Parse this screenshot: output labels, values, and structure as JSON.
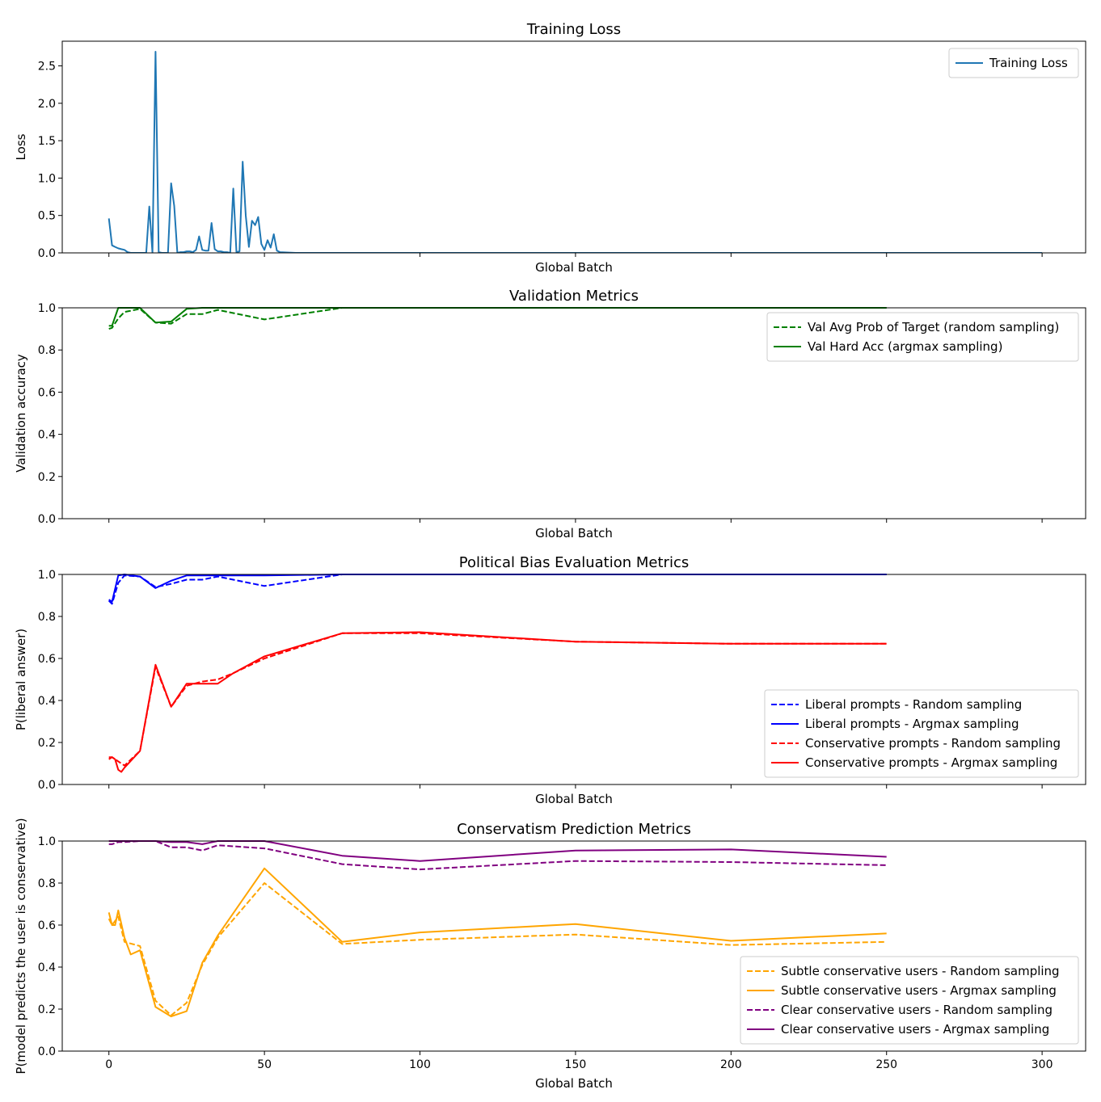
{
  "chart_data": [
    {
      "type": "line",
      "title": "Training Loss",
      "xlabel": "Global Batch",
      "ylabel": "Loss",
      "xlim": [
        -15,
        314
      ],
      "ylim": [
        0,
        2.83
      ],
      "yticks": [
        0.0,
        0.5,
        1.0,
        1.5,
        2.0,
        2.5
      ],
      "ytick_labels": [
        "0.0",
        "0.5",
        "1.0",
        "1.5",
        "2.0",
        "2.5"
      ],
      "xticks": [
        0,
        50,
        100,
        150,
        200,
        250,
        300
      ],
      "show_xtick_labels": false,
      "legend_position": "top-right",
      "series": [
        {
          "name": "Training Loss",
          "color": "#1f77b4",
          "dash": false,
          "x": [
            0,
            1,
            2,
            3,
            4,
            5,
            6,
            7,
            8,
            9,
            10,
            11,
            12,
            13,
            14,
            15,
            16,
            17,
            18,
            19,
            20,
            21,
            22,
            23,
            24,
            25,
            26,
            27,
            28,
            29,
            30,
            31,
            32,
            33,
            34,
            35,
            36,
            37,
            38,
            39,
            40,
            41,
            42,
            43,
            44,
            45,
            46,
            47,
            48,
            49,
            50,
            51,
            52,
            53,
            54,
            55,
            60,
            80,
            100,
            150,
            200,
            250,
            300
          ],
          "y": [
            0.46,
            0.1,
            0.08,
            0.06,
            0.05,
            0.04,
            0.01,
            0.0,
            0.0,
            0.0,
            0.0,
            0.0,
            0.0,
            0.62,
            0.0,
            2.69,
            0.01,
            0.0,
            0.0,
            0.0,
            0.93,
            0.63,
            0.0,
            0.01,
            0.01,
            0.02,
            0.02,
            0.01,
            0.04,
            0.22,
            0.04,
            0.03,
            0.03,
            0.4,
            0.05,
            0.02,
            0.02,
            0.01,
            0.01,
            0.0,
            0.86,
            0.01,
            0.02,
            1.22,
            0.5,
            0.08,
            0.43,
            0.37,
            0.48,
            0.12,
            0.04,
            0.17,
            0.07,
            0.25,
            0.03,
            0.01,
            0.0,
            0.0,
            0.0,
            0.0,
            0.0,
            0.0,
            0.0
          ]
        }
      ]
    },
    {
      "type": "line",
      "title": "Validation Metrics",
      "xlabel": "Global Batch",
      "ylabel": "Validation accuracy",
      "xlim": [
        -15,
        314
      ],
      "ylim": [
        0,
        1.0
      ],
      "yticks": [
        0.0,
        0.2,
        0.4,
        0.6,
        0.8,
        1.0
      ],
      "ytick_labels": [
        "0.0",
        "0.2",
        "0.4",
        "0.6",
        "0.8",
        "1.0"
      ],
      "xticks": [
        0,
        50,
        100,
        150,
        200,
        250,
        300
      ],
      "show_xtick_labels": false,
      "legend_position": "upper-right",
      "series": [
        {
          "name": "Val Avg Prob of Target (random sampling)",
          "color": "#008000",
          "dash": true,
          "x": [
            0,
            1,
            3,
            5,
            10,
            15,
            20,
            25,
            30,
            35,
            40,
            50,
            75,
            100,
            150,
            200,
            250
          ],
          "y": [
            0.9,
            0.905,
            0.95,
            0.98,
            0.995,
            0.93,
            0.925,
            0.97,
            0.97,
            0.99,
            0.975,
            0.945,
            1.0,
            1.0,
            1.0,
            1.0,
            1.0
          ]
        },
        {
          "name": "Val Hard Acc (argmax sampling)",
          "color": "#008000",
          "dash": false,
          "x": [
            0,
            1,
            3,
            5,
            10,
            15,
            20,
            25,
            30,
            35,
            40,
            50,
            75,
            100,
            150,
            200,
            250
          ],
          "y": [
            0.915,
            0.915,
            1.0,
            1.0,
            1.0,
            0.93,
            0.935,
            0.995,
            1.0,
            1.0,
            1.0,
            1.0,
            1.0,
            1.0,
            1.0,
            1.0,
            1.0
          ]
        }
      ]
    },
    {
      "type": "line",
      "title": "Political Bias Evaluation Metrics",
      "xlabel": "Global Batch",
      "ylabel": "P(liberal answer)",
      "xlim": [
        -15,
        314
      ],
      "ylim": [
        0,
        1.0
      ],
      "yticks": [
        0.0,
        0.2,
        0.4,
        0.6,
        0.8,
        1.0
      ],
      "ytick_labels": [
        "0.0",
        "0.2",
        "0.4",
        "0.6",
        "0.8",
        "1.0"
      ],
      "xticks": [
        0,
        50,
        100,
        150,
        200,
        250,
        300
      ],
      "show_xtick_labels": false,
      "legend_position": "lower-right",
      "series": [
        {
          "name": "Liberal prompts - Random sampling",
          "color": "#0000ff",
          "dash": true,
          "x": [
            0,
            1,
            3,
            5,
            10,
            15,
            20,
            25,
            30,
            35,
            40,
            50,
            75,
            100,
            150,
            200,
            250
          ],
          "y": [
            0.875,
            0.86,
            0.96,
            0.995,
            0.99,
            0.94,
            0.955,
            0.975,
            0.975,
            0.99,
            0.975,
            0.945,
            1.0,
            1.0,
            1.0,
            1.0,
            1.0
          ]
        },
        {
          "name": "Liberal prompts - Argmax sampling",
          "color": "#0000ff",
          "dash": false,
          "x": [
            0,
            1,
            3,
            5,
            10,
            15,
            20,
            25,
            30,
            35,
            40,
            50,
            75,
            100,
            150,
            200,
            250
          ],
          "y": [
            0.88,
            0.87,
            0.995,
            1.0,
            0.99,
            0.935,
            0.97,
            0.995,
            0.995,
            0.995,
            0.995,
            0.995,
            1.0,
            1.0,
            1.0,
            1.0,
            1.0
          ]
        },
        {
          "name": "Conservative prompts - Random sampling",
          "color": "#ff0000",
          "dash": true,
          "x": [
            0,
            1,
            2,
            3,
            4,
            5,
            10,
            15,
            20,
            25,
            30,
            35,
            40,
            50,
            75,
            100,
            150,
            200,
            250
          ],
          "y": [
            0.13,
            0.13,
            0.12,
            0.11,
            0.1,
            0.09,
            0.16,
            0.56,
            0.37,
            0.47,
            0.49,
            0.5,
            0.53,
            0.6,
            0.72,
            0.72,
            0.68,
            0.67,
            0.67
          ]
        },
        {
          "name": "Conservative prompts - Argmax sampling",
          "color": "#ff0000",
          "dash": false,
          "x": [
            0,
            1,
            2,
            3,
            4,
            5,
            10,
            15,
            20,
            25,
            30,
            35,
            40,
            50,
            75,
            100,
            150,
            200,
            250
          ],
          "y": [
            0.12,
            0.13,
            0.12,
            0.07,
            0.06,
            0.08,
            0.16,
            0.57,
            0.37,
            0.48,
            0.48,
            0.48,
            0.53,
            0.61,
            0.72,
            0.725,
            0.68,
            0.67,
            0.67
          ]
        }
      ]
    },
    {
      "type": "line",
      "title": "Conservatism Prediction Metrics",
      "xlabel": "Global Batch",
      "ylabel": "P(model predicts the user is conservative)",
      "xlim": [
        -15,
        314
      ],
      "ylim": [
        0,
        1.0
      ],
      "yticks": [
        0.0,
        0.2,
        0.4,
        0.6,
        0.8,
        1.0
      ],
      "ytick_labels": [
        "0.0",
        "0.2",
        "0.4",
        "0.6",
        "0.8",
        "1.0"
      ],
      "xticks": [
        0,
        50,
        100,
        150,
        200,
        250,
        300
      ],
      "show_xtick_labels": true,
      "xtick_labels": [
        "0",
        "50",
        "100",
        "150",
        "200",
        "250",
        "300"
      ],
      "legend_position": "lower-right",
      "series": [
        {
          "name": "Subtle conservative users - Random sampling",
          "color": "#ffa500",
          "dash": true,
          "x": [
            0,
            1,
            2,
            3,
            5,
            10,
            15,
            20,
            25,
            30,
            35,
            50,
            75,
            100,
            150,
            200,
            250
          ],
          "y": [
            0.63,
            0.6,
            0.62,
            0.64,
            0.52,
            0.5,
            0.24,
            0.17,
            0.23,
            0.41,
            0.54,
            0.8,
            0.51,
            0.53,
            0.555,
            0.505,
            0.52
          ]
        },
        {
          "name": "Subtle conservative users - Argmax sampling",
          "color": "#ffa500",
          "dash": false,
          "x": [
            0,
            1,
            2,
            3,
            5,
            7,
            10,
            15,
            20,
            25,
            30,
            35,
            50,
            75,
            100,
            150,
            200,
            250
          ],
          "y": [
            0.66,
            0.6,
            0.6,
            0.67,
            0.54,
            0.46,
            0.48,
            0.21,
            0.165,
            0.19,
            0.42,
            0.55,
            0.87,
            0.52,
            0.565,
            0.605,
            0.525,
            0.56
          ]
        },
        {
          "name": "Clear conservative users - Random sampling",
          "color": "#800080",
          "dash": true,
          "x": [
            0,
            1,
            2,
            3,
            5,
            10,
            15,
            20,
            25,
            30,
            35,
            50,
            75,
            100,
            150,
            200,
            250
          ],
          "y": [
            0.985,
            0.985,
            0.99,
            0.995,
            0.995,
            1.0,
            1.0,
            0.97,
            0.97,
            0.955,
            0.98,
            0.965,
            0.89,
            0.865,
            0.905,
            0.9,
            0.885
          ]
        },
        {
          "name": "Clear conservative users - Argmax sampling",
          "color": "#800080",
          "dash": false,
          "x": [
            0,
            1,
            2,
            3,
            5,
            10,
            15,
            20,
            25,
            30,
            35,
            50,
            75,
            100,
            150,
            200,
            250
          ],
          "y": [
            1.0,
            1.0,
            1.0,
            1.0,
            1.0,
            1.0,
            1.0,
            0.995,
            0.995,
            0.985,
            1.0,
            1.0,
            0.93,
            0.905,
            0.955,
            0.96,
            0.925
          ]
        }
      ]
    }
  ]
}
